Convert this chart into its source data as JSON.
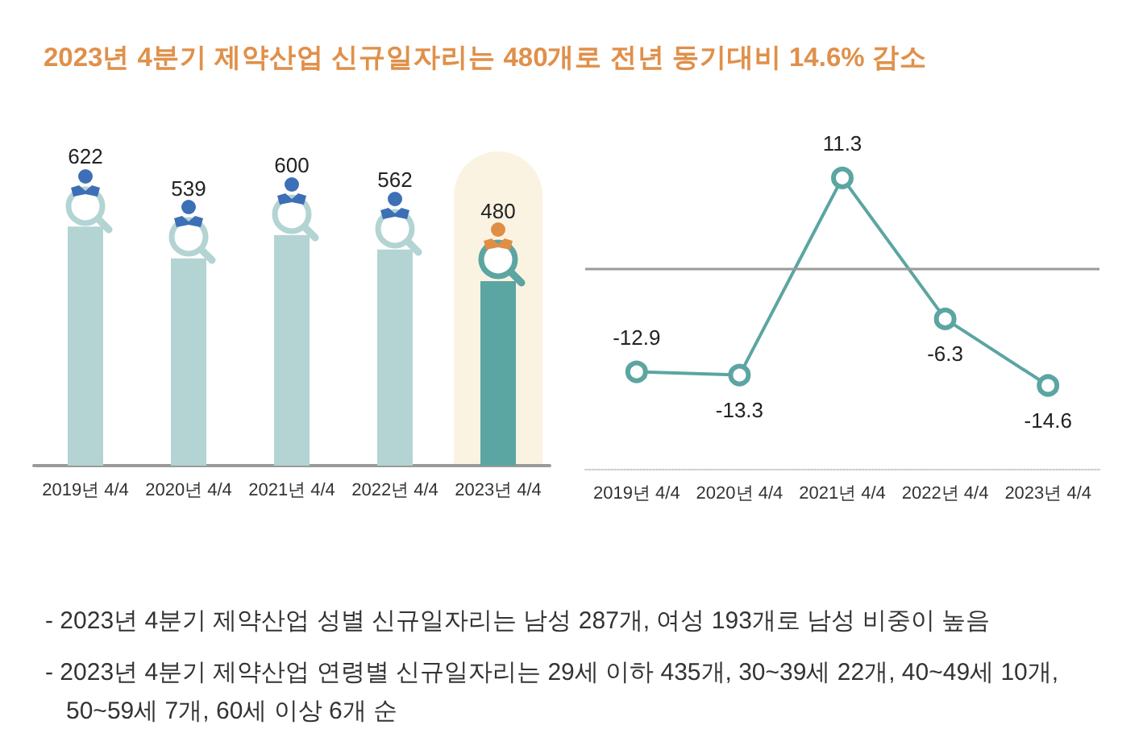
{
  "chart_data": [
    {
      "type": "bar",
      "title": "2023년 4분기 제약산업 신규일자리는 480개로 전년 동기대비 14.6% 감소",
      "categories": [
        "2019년 4/4",
        "2020년 4/4",
        "2021년 4/4",
        "2022년 4/4",
        "2023년 4/4"
      ],
      "values": [
        622,
        539,
        600,
        562,
        480
      ],
      "colors": [
        "#b3d4d3",
        "#b3d4d3",
        "#b3d4d3",
        "#b3d4d3",
        "#5ba5a2"
      ],
      "bands": [
        {
          "axis": "x",
          "from": "2023년 4/4",
          "to": "2023년 4/4",
          "color": "#fbf3e2"
        }
      ],
      "data_labels": true,
      "tick_labels": "x"
    },
    {
      "type": "line",
      "categories": [
        "2019년 4/4",
        "2020년 4/4",
        "2021년 4/4",
        "2022년 4/4",
        "2023년 4/4"
      ],
      "values": [
        -12.9,
        -13.3,
        11.3,
        -6.3,
        -14.6
      ],
      "color": "#5ba5a2",
      "marker": "circle",
      "data_labels": true,
      "tick_labels": "x",
      "ref_lines": [
        {
          "axis": "y",
          "value": 0,
          "color": "#9a9a9a"
        }
      ],
      "annotations": [
        "- 2023년 4분기 제약산업 성별 신규일자리는 남성 287개, 여성 193개로 남성 비중이 높음",
        "- 2023년 4분기 제약산업 연령별 신규일자리는 29세 이하 435개, 30~39세 22개, 40~49세 10개, 50~59세 7개, 60세 이상 6개 순"
      ]
    }
  ]
}
